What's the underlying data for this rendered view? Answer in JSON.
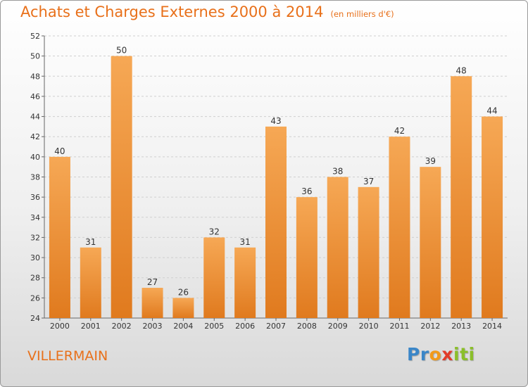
{
  "title": "Achats et Charges Externes 2000 à 2014",
  "unit": "(en milliers d'€)",
  "commune": "VILLERMAIN",
  "logo": {
    "text": "Proxiti",
    "letters": [
      "P",
      "r",
      "o",
      "x",
      "i",
      "ti"
    ]
  },
  "colors": {
    "bar_top": "#f6a855",
    "bar_bottom": "#e07a1e",
    "title": "#e8701a"
  },
  "chart_data": {
    "type": "bar",
    "categories": [
      "2000",
      "2001",
      "2002",
      "2003",
      "2004",
      "2005",
      "2006",
      "2007",
      "2008",
      "2009",
      "2010",
      "2011",
      "2012",
      "2013",
      "2014"
    ],
    "values": [
      40,
      31,
      50,
      27,
      26,
      32,
      31,
      43,
      36,
      38,
      37,
      42,
      39,
      48,
      44
    ],
    "ylim": [
      24,
      52
    ],
    "yticks": [
      24,
      26,
      28,
      30,
      32,
      34,
      36,
      38,
      40,
      42,
      44,
      46,
      48,
      50,
      52
    ],
    "grid": true
  }
}
